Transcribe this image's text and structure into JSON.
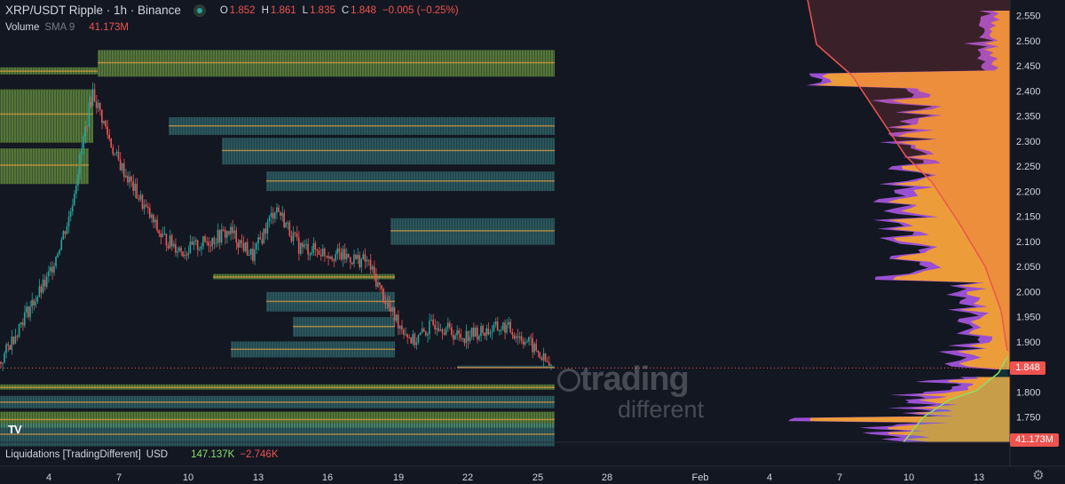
{
  "header": {
    "symbol_title": "XRP/USDT Ripple · 1h · Binance",
    "ohlc": [
      {
        "key": "O",
        "value": "1.852"
      },
      {
        "key": "H",
        "value": "1.861"
      },
      {
        "key": "L",
        "value": "1.835"
      },
      {
        "key": "C",
        "value": "1.848"
      }
    ],
    "change": "−0.005 (−0.25%)"
  },
  "volume_indicator": {
    "name": "Volume",
    "ma": "SMA 9",
    "value": "41.173M"
  },
  "liquidations_indicator": {
    "name": "Liquidations [TradingDifferent]",
    "unit": "USD",
    "long_value": "147.137K",
    "short_value": "−2.746K"
  },
  "watermark": {
    "line1": "trading",
    "line2": "different"
  },
  "tv_logo": "TV",
  "price_axis": {
    "labels": [
      "2.550",
      "2.500",
      "2.450",
      "2.400",
      "2.350",
      "2.300",
      "2.250",
      "2.200",
      "2.150",
      "2.100",
      "2.050",
      "2.000",
      "1.950",
      "1.900",
      "1.850",
      "1.800",
      "1.750"
    ],
    "current_price_badge": "1.848",
    "volume_badge": "41.173M"
  },
  "time_axis": {
    "labels": [
      "4",
      "7",
      "10",
      "13",
      "16",
      "19",
      "22",
      "25",
      "28",
      "Feb",
      "4",
      "7",
      "10",
      "13"
    ]
  },
  "colors": {
    "background": "#131722",
    "down": "#ef5350",
    "up": "#26a69a",
    "profile_orange": "#f0a030",
    "profile_purple": "#b35bf0",
    "heatmap_green": "#8bc34a",
    "heatmap_teal": "#3e8a8a"
  },
  "chart_data": {
    "type": "line",
    "title": "XRP/USDT Ripple · 1h · Binance",
    "y_range": [
      1.7,
      2.57
    ],
    "series": [
      {
        "name": "",
        "x": [
          "2",
          "3",
          "4",
          "5",
          "6",
          "7",
          "8",
          "9",
          "10",
          "11",
          "12",
          "13",
          "14",
          "15",
          "16",
          "17",
          "18",
          "19",
          "20",
          "21",
          "22",
          "23",
          "24",
          "25",
          "26"
        ],
        "values": [
          1.86,
          1.95,
          2.02,
          2.15,
          2.4,
          2.27,
          2.19,
          2.11,
          2.08,
          2.1,
          2.12,
          2.07,
          2.17,
          2.09,
          2.08,
          2.07,
          2.06,
          1.96,
          1.9,
          1.94,
          1.91,
          1.92,
          1.93,
          1.9,
          1.848
        ]
      }
    ],
    "last_price": 1.848,
    "ylabel": "",
    "xlabel": ""
  }
}
